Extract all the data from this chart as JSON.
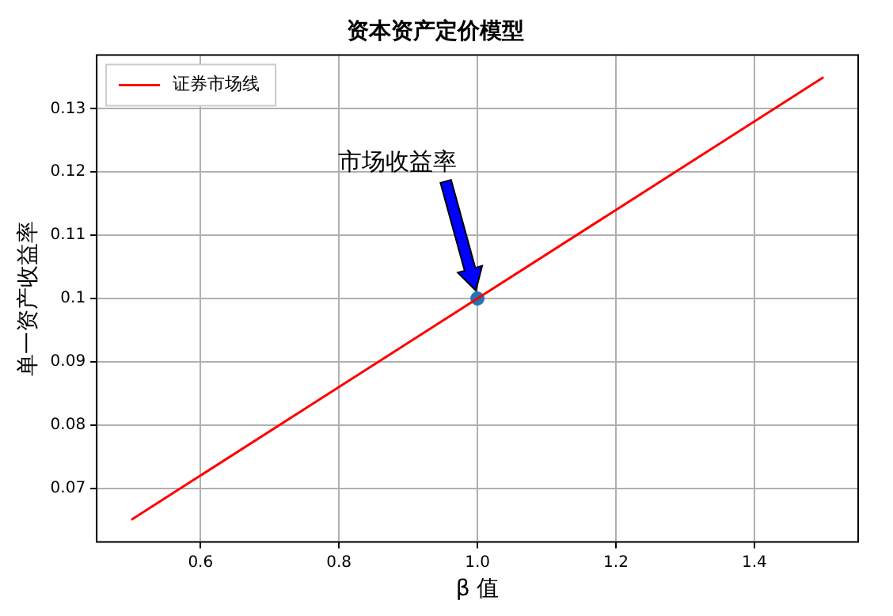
{
  "chart_data": {
    "type": "line",
    "title": "资本资产定价模型",
    "xlabel": "β 值",
    "ylabel": "单一资产收益率",
    "x": [
      0.5,
      1.5
    ],
    "series": [
      {
        "name": "证券市场线",
        "color": "#ff0000",
        "values": [
          0.065,
          0.135
        ],
        "marker": "none"
      },
      {
        "type": "scatter",
        "color": "#1f77b4",
        "x": [
          1
        ],
        "values": [
          0.1
        ],
        "marker": "circle"
      }
    ],
    "xlim": [
      0.45,
      1.55
    ],
    "xticks": [
      0.6,
      0.8,
      {
        "value": 1,
        "label": "1.0"
      },
      1.2,
      1.4
    ],
    "ylim": [
      0.0615,
      0.1385
    ],
    "yticks": [
      0.07,
      0.08,
      0.09,
      0.1,
      0.11,
      0.12,
      0.13
    ],
    "annotations": [
      "市场收益率"
    ],
    "grid": true,
    "legend": "top left"
  }
}
